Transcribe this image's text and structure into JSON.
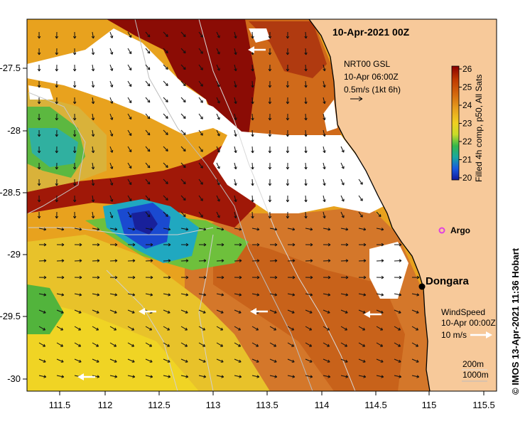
{
  "title": "10-Apr-2021 00Z",
  "current_legend": {
    "line1": "NRT00 GSL",
    "line2": "10-Apr 06:00Z",
    "line3": "0.5m/s (1kt 6h)"
  },
  "colorbar": {
    "label": "Filled 4h comp, p50, All Sats",
    "ticks": [
      "26",
      "25",
      "24",
      "23",
      "22",
      "21",
      "20"
    ],
    "colors": [
      "#8b0000",
      "#c03a00",
      "#d4690e",
      "#e8a21e",
      "#f0d020",
      "#c8dc28",
      "#36b84a",
      "#1aa8a0",
      "#1a5ae0",
      "#141a9a"
    ]
  },
  "argo": {
    "label": "Argo",
    "color": "#e040e0"
  },
  "place": {
    "label": "Dongara"
  },
  "wind_legend": {
    "line1": "WindSpeed",
    "line2": "10-Apr 00:00Z",
    "scale": "10 m/s"
  },
  "depth_legend": {
    "line1": "200m",
    "line2": "1000m"
  },
  "credit": "© IMOS 13-Apr-2021 11:36 Hobart",
  "x_ticks": [
    "111.5",
    "112",
    "112.5",
    "113",
    "113.5",
    "114",
    "114.5",
    "115",
    "115.5"
  ],
  "y_ticks": [
    "-27.5",
    "-28",
    "-28.5",
    "-29",
    "-29.5",
    "-30"
  ],
  "colors": {
    "land": "#f7c99a",
    "cloud": "#ffffff",
    "coast": "#000000"
  }
}
